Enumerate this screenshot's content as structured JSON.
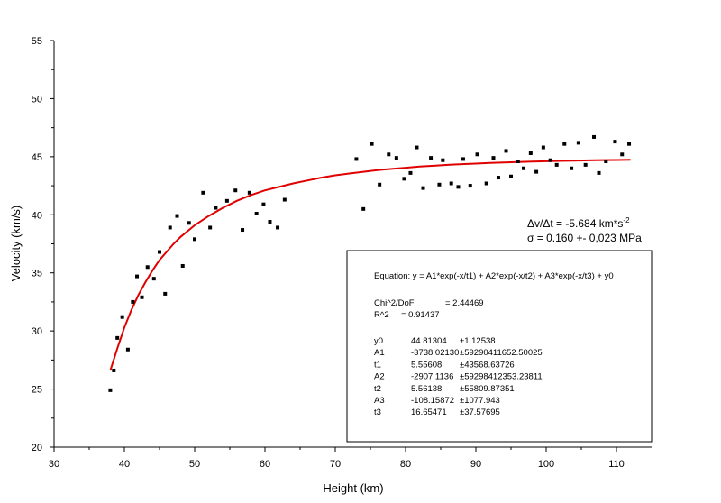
{
  "chart_data": {
    "type": "scatter",
    "title": "",
    "xlabel": "Height (km)",
    "ylabel": "Velocity (km/s)",
    "xlim": [
      30,
      115
    ],
    "ylim": [
      20,
      55
    ],
    "xticks": [
      30,
      40,
      50,
      60,
      70,
      80,
      90,
      100,
      110
    ],
    "yticks": [
      20,
      25,
      30,
      35,
      40,
      45,
      50,
      55
    ],
    "grid": false,
    "series": [
      {
        "kind": "points",
        "color": "#000000",
        "points": [
          [
            38.0,
            24.9
          ],
          [
            38.5,
            26.6
          ],
          [
            39.0,
            29.4
          ],
          [
            39.7,
            31.2
          ],
          [
            40.5,
            28.4
          ],
          [
            41.2,
            32.5
          ],
          [
            41.8,
            34.7
          ],
          [
            42.5,
            32.9
          ],
          [
            43.3,
            35.5
          ],
          [
            44.2,
            34.5
          ],
          [
            45.0,
            36.8
          ],
          [
            45.8,
            33.2
          ],
          [
            46.5,
            38.9
          ],
          [
            47.5,
            39.9
          ],
          [
            48.3,
            35.6
          ],
          [
            49.2,
            39.3
          ],
          [
            50.0,
            37.9
          ],
          [
            51.2,
            41.9
          ],
          [
            52.2,
            38.9
          ],
          [
            53.0,
            40.6
          ],
          [
            54.6,
            41.2
          ],
          [
            55.8,
            42.1
          ],
          [
            56.8,
            38.7
          ],
          [
            57.8,
            41.9
          ],
          [
            58.8,
            40.1
          ],
          [
            59.8,
            40.9
          ],
          [
            60.7,
            39.4
          ],
          [
            61.8,
            38.9
          ],
          [
            62.8,
            41.3
          ],
          [
            73.0,
            44.8
          ],
          [
            74.0,
            40.5
          ],
          [
            75.2,
            46.1
          ],
          [
            76.3,
            42.6
          ],
          [
            77.6,
            45.2
          ],
          [
            78.7,
            44.9
          ],
          [
            79.8,
            43.1
          ],
          [
            80.7,
            43.6
          ],
          [
            81.6,
            45.8
          ],
          [
            82.5,
            42.3
          ],
          [
            83.6,
            44.9
          ],
          [
            84.8,
            42.6
          ],
          [
            85.3,
            44.7
          ],
          [
            86.5,
            42.7
          ],
          [
            87.5,
            42.4
          ],
          [
            88.2,
            44.8
          ],
          [
            89.2,
            42.5
          ],
          [
            90.2,
            45.2
          ],
          [
            91.5,
            42.7
          ],
          [
            92.5,
            44.9
          ],
          [
            93.2,
            43.2
          ],
          [
            94.3,
            45.5
          ],
          [
            95.0,
            43.3
          ],
          [
            96.0,
            44.6
          ],
          [
            96.8,
            44.0
          ],
          [
            97.8,
            45.3
          ],
          [
            98.6,
            43.7
          ],
          [
            99.6,
            45.8
          ],
          [
            100.6,
            44.7
          ],
          [
            101.5,
            44.3
          ],
          [
            102.6,
            46.1
          ],
          [
            103.6,
            44.0
          ],
          [
            104.6,
            46.2
          ],
          [
            105.6,
            44.3
          ],
          [
            106.8,
            46.7
          ],
          [
            107.5,
            43.6
          ],
          [
            108.5,
            44.6
          ],
          [
            109.8,
            46.3
          ],
          [
            110.8,
            45.2
          ],
          [
            111.8,
            46.1
          ]
        ]
      },
      {
        "kind": "fit",
        "color": "#e00000",
        "points": [
          [
            38,
            26.6
          ],
          [
            39,
            28.5
          ],
          [
            40,
            30.3
          ],
          [
            41,
            31.8
          ],
          [
            42,
            33.1
          ],
          [
            43,
            34.2
          ],
          [
            44,
            35.2
          ],
          [
            45,
            36.1
          ],
          [
            46,
            36.8
          ],
          [
            47,
            37.5
          ],
          [
            48,
            38.1
          ],
          [
            50,
            39.1
          ],
          [
            52,
            39.9
          ],
          [
            54,
            40.6
          ],
          [
            56,
            41.2
          ],
          [
            58,
            41.7
          ],
          [
            60,
            42.1
          ],
          [
            62,
            42.4
          ],
          [
            64,
            42.7
          ],
          [
            66,
            42.95
          ],
          [
            68,
            43.2
          ],
          [
            70,
            43.4
          ],
          [
            72,
            43.55
          ],
          [
            74,
            43.7
          ],
          [
            76,
            43.85
          ],
          [
            78,
            43.95
          ],
          [
            80,
            44.05
          ],
          [
            82,
            44.15
          ],
          [
            84,
            44.22
          ],
          [
            86,
            44.3
          ],
          [
            88,
            44.36
          ],
          [
            90,
            44.41
          ],
          [
            92,
            44.46
          ],
          [
            94,
            44.51
          ],
          [
            96,
            44.55
          ],
          [
            98,
            44.58
          ],
          [
            100,
            44.61
          ],
          [
            102,
            44.64
          ],
          [
            104,
            44.66
          ],
          [
            106,
            44.69
          ],
          [
            108,
            44.71
          ],
          [
            110,
            44.72
          ],
          [
            112,
            44.74
          ]
        ]
      }
    ],
    "annotations": {
      "rate": "Δv/Δt = -5.684 km*s",
      "rate_exp": "-2",
      "sigma": "σ = 0.160 +- 0,023 MPa"
    },
    "fit_box": {
      "equation": "Equation: y = A1*exp(-x/t1) + A2*exp(-x/t2) + A3*exp(-x/t3) + y0",
      "chi_label": "Chi^2/DoF",
      "chi_value": "= 2.44469",
      "r2_label": "R^2",
      "r2_value": "=  0.91437",
      "params": [
        {
          "name": "y0",
          "value": "44.81304",
          "error": "±1.12538"
        },
        {
          "name": "A1",
          "value": "-3738.02130",
          "error": "±59290411652.50025"
        },
        {
          "name": "t1",
          "value": "5.55608",
          "error": "±43568.63726"
        },
        {
          "name": "A2",
          "value": "-2907.1136",
          "error": "±59298412353.23811"
        },
        {
          "name": "t2",
          "value": "5.56138",
          "error": "±55809.87351"
        },
        {
          "name": "A3",
          "value": "-108.15872",
          "error": "±1077.943"
        },
        {
          "name": "t3",
          "value": "16.65471",
          "error": "±37.57695"
        }
      ]
    }
  }
}
